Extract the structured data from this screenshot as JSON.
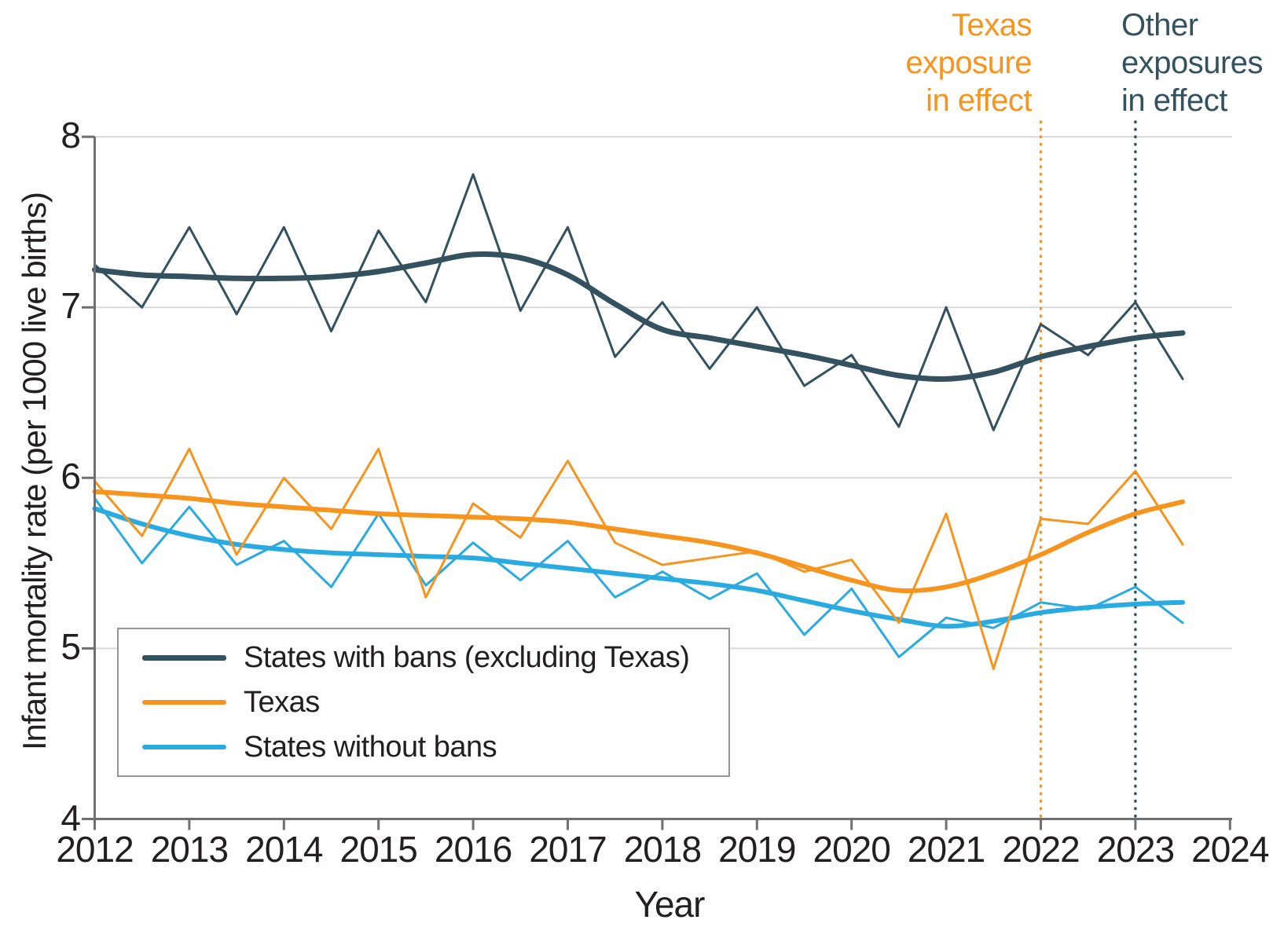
{
  "figure": {
    "y_axis_title": "Infant mortality rate (per 1000 live births)",
    "x_axis_title": "Year"
  },
  "axes": {
    "y": {
      "min": 4,
      "max": 8,
      "tick_values": [
        8,
        7,
        6,
        5,
        4
      ],
      "tick_labels": [
        "8",
        "7",
        "6",
        "5",
        "4"
      ],
      "gridline_values": [
        8,
        7,
        6,
        5
      ]
    },
    "x": {
      "min": 2012,
      "max": 2024,
      "tick_values": [
        2012,
        2013,
        2014,
        2015,
        2016,
        2017,
        2018,
        2019,
        2020,
        2021,
        2022,
        2023,
        2024
      ],
      "tick_labels": [
        "2012",
        "2013",
        "2014",
        "2015",
        "2016",
        "2017",
        "2018",
        "2019",
        "2020",
        "2021",
        "2022",
        "2023",
        "2024"
      ]
    }
  },
  "annotations": {
    "texas_exposure": {
      "lines": [
        "Texas",
        "exposure",
        "in effect"
      ],
      "color": "#F7941E",
      "year": 2022
    },
    "other_exposures": {
      "lines": [
        "Other",
        "exposures",
        "in effect"
      ],
      "color": "#33515E",
      "year": 2023
    }
  },
  "legend": {
    "items": [
      {
        "label": "States with bans (excluding Texas)",
        "color": "#33515E"
      },
      {
        "label": "Texas",
        "color": "#F7941E"
      },
      {
        "label": "States without bans",
        "color": "#29ABE2"
      }
    ]
  },
  "colors": {
    "gridline": "#D9D9D9",
    "axis": "#6E6F72",
    "text": "#231F20",
    "background": "#FFFFFF"
  },
  "chart_data": {
    "type": "line",
    "title": "",
    "xlabel": "Year",
    "ylabel": "Infant mortality rate (per 1000 live births)",
    "xlim": [
      2012,
      2024
    ],
    "ylim": [
      4,
      8
    ],
    "grid": "horizontal",
    "legend_position": "lower-left",
    "x": [
      2012,
      2012.5,
      2013,
      2013.5,
      2014,
      2014.5,
      2015,
      2015.5,
      2016,
      2016.5,
      2017,
      2017.5,
      2018,
      2018.5,
      2019,
      2019.5,
      2020,
      2020.5,
      2021,
      2021.5,
      2022,
      2022.5,
      2023,
      2023.5
    ],
    "series": [
      {
        "name": "States with bans (excluding Texas)",
        "color": "#33515E",
        "raw_width": 3,
        "trend_width": 7,
        "raw": [
          7.25,
          7.0,
          7.47,
          6.96,
          7.47,
          6.86,
          7.45,
          7.03,
          7.78,
          6.98,
          7.47,
          6.71,
          7.03,
          6.64,
          7.0,
          6.54,
          6.72,
          6.3,
          7.0,
          6.28,
          6.9,
          6.72,
          7.03,
          6.58
        ],
        "trend": [
          7.22,
          7.19,
          7.18,
          7.17,
          7.17,
          7.18,
          7.21,
          7.26,
          7.31,
          7.29,
          7.19,
          7.02,
          6.87,
          6.82,
          6.77,
          6.72,
          6.66,
          6.6,
          6.58,
          6.62,
          6.71,
          6.77,
          6.82,
          6.85
        ]
      },
      {
        "name": "Texas",
        "color": "#F7941E",
        "raw_width": 3,
        "trend_width": 6,
        "raw": [
          5.98,
          5.66,
          6.17,
          5.55,
          6.0,
          5.7,
          6.17,
          5.3,
          5.85,
          5.65,
          6.1,
          5.62,
          5.49,
          5.53,
          5.57,
          5.45,
          5.52,
          5.15,
          5.79,
          4.88,
          5.76,
          5.73,
          6.04,
          5.61
        ],
        "trend": [
          5.92,
          5.9,
          5.88,
          5.85,
          5.83,
          5.81,
          5.79,
          5.78,
          5.77,
          5.76,
          5.74,
          5.7,
          5.66,
          5.62,
          5.56,
          5.48,
          5.4,
          5.34,
          5.36,
          5.44,
          5.55,
          5.68,
          5.79,
          5.86
        ]
      },
      {
        "name": "States without bans",
        "color": "#29ABE2",
        "raw_width": 3,
        "trend_width": 6,
        "raw": [
          5.88,
          5.5,
          5.83,
          5.49,
          5.63,
          5.36,
          5.79,
          5.37,
          5.62,
          5.4,
          5.63,
          5.3,
          5.45,
          5.29,
          5.44,
          5.08,
          5.35,
          4.95,
          5.18,
          5.12,
          5.27,
          5.23,
          5.36,
          5.15
        ],
        "trend": [
          5.82,
          5.73,
          5.66,
          5.61,
          5.58,
          5.56,
          5.55,
          5.54,
          5.53,
          5.5,
          5.47,
          5.44,
          5.41,
          5.38,
          5.34,
          5.28,
          5.22,
          5.17,
          5.13,
          5.16,
          5.21,
          5.24,
          5.26,
          5.27
        ]
      }
    ],
    "reference_lines": [
      {
        "label": "Texas exposure in effect",
        "year": 2022,
        "color": "#F7941E",
        "style": "dotted"
      },
      {
        "label": "Other exposures in effect",
        "year": 2023,
        "color": "#33515E",
        "style": "dotted"
      }
    ]
  }
}
